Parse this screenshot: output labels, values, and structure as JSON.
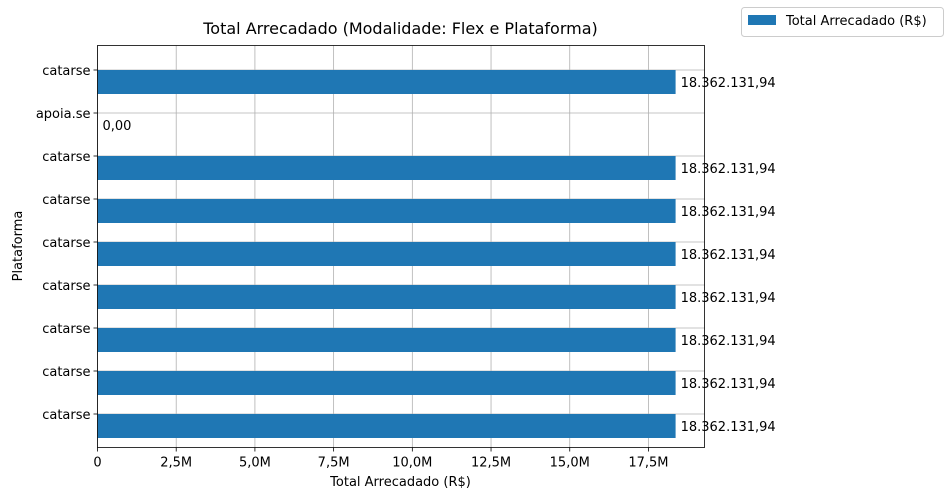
{
  "chart_data": {
    "type": "bar",
    "orientation": "horizontal",
    "title": "Total Arrecadado (Modalidade: Flex e Plataforma)",
    "xlabel": "Total Arrecadado (R$)",
    "ylabel": "Plataforma",
    "categories": [
      "catarse",
      "catarse",
      "catarse",
      "catarse",
      "catarse",
      "catarse",
      "catarse",
      "apoia.se",
      "catarse"
    ],
    "series": [
      {
        "name": "Total Arrecadado (R$)",
        "values": [
          18362131.94,
          18362131.94,
          18362131.94,
          18362131.94,
          18362131.94,
          18362131.94,
          18362131.94,
          0,
          18362131.94
        ],
        "labels": [
          "18.362.131,94",
          "18.362.131,94",
          "18.362.131,94",
          "18.362.131,94",
          "18.362.131,94",
          "18.362.131,94",
          "18.362.131,94",
          "0,00",
          "18.362.131,94"
        ],
        "color": "#1f77b4"
      }
    ],
    "xlim": [
      0,
      19280238.5
    ],
    "xticks": [
      0,
      2500000,
      5000000,
      7500000,
      10000000,
      12500000,
      15000000,
      17500000
    ],
    "xtick_labels": [
      "0",
      "2,5M",
      "5,0M",
      "7,5M",
      "10,0M",
      "12,5M",
      "15,0M",
      "17,5M"
    ],
    "grid": true,
    "legend_position": "outside-top-right"
  }
}
